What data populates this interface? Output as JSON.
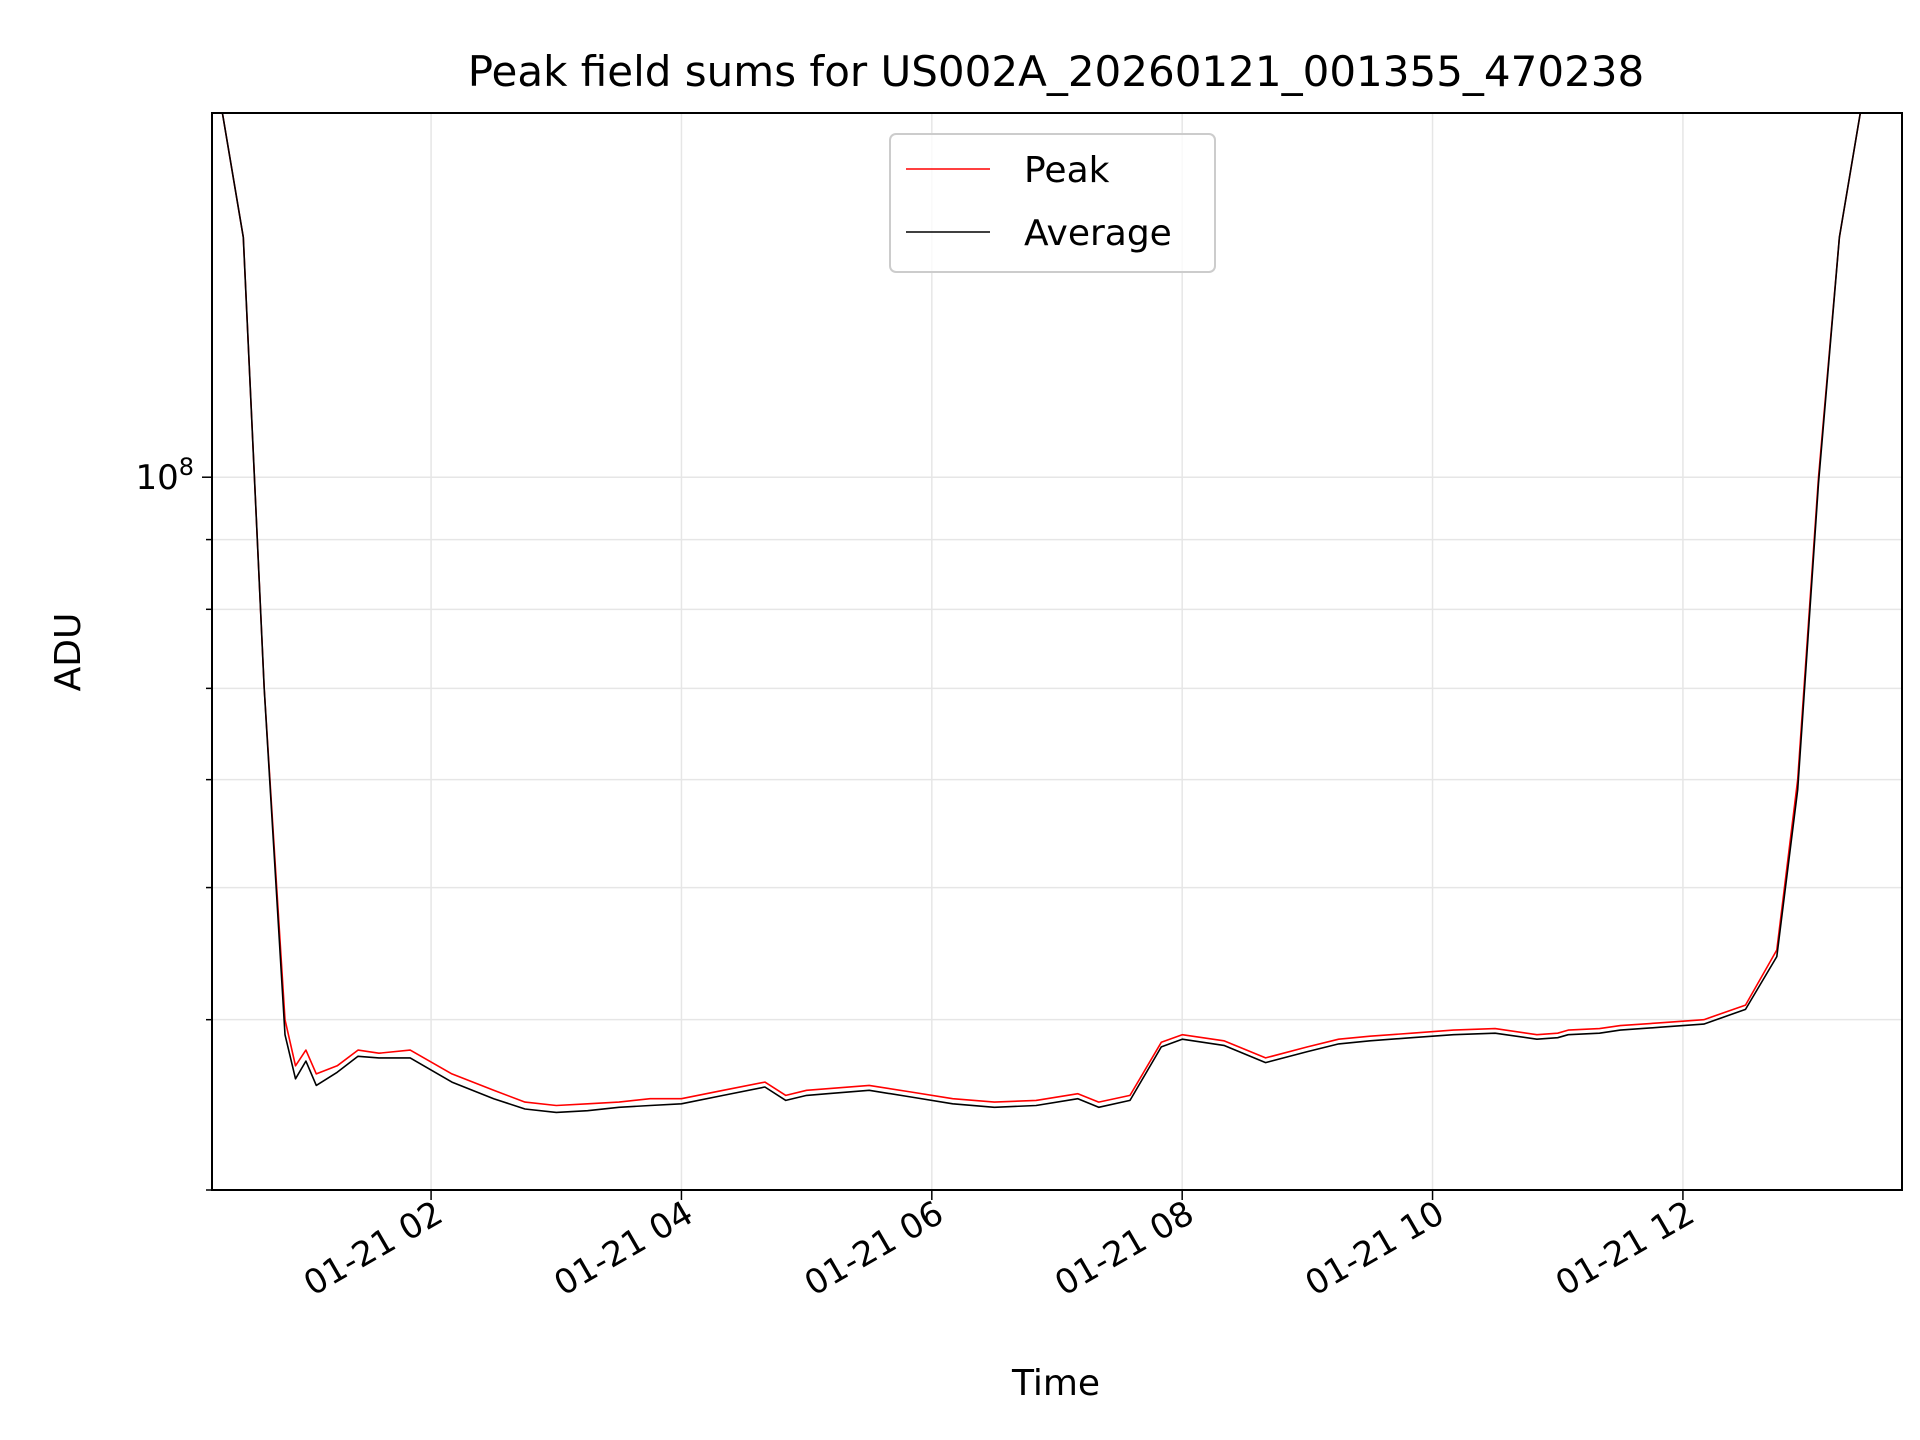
{
  "chart_data": {
    "type": "line",
    "title": "Peak field sums for US002A_20260121_001355_470238",
    "xlabel": "Time",
    "ylabel": "ADU",
    "y_scale": "log",
    "grid": true,
    "legend_position": "upper center",
    "x_range_hours": [
      "01-21 00:15",
      "01-21 13:45"
    ],
    "ylim": [
      30000000,
      185000000
    ],
    "x_ticks": [
      "01-21 02",
      "01-21 04",
      "01-21 06",
      "01-21 08",
      "01-21 10",
      "01-21 12"
    ],
    "y_ticks": [
      "10^8"
    ],
    "y_tick_base": "10",
    "y_tick_exp": "8",
    "series": [
      {
        "name": "Peak",
        "color": "#ff0000",
        "x": [
          "01-21 00:15",
          "01-21 00:20",
          "01-21 00:30",
          "01-21 00:40",
          "01-21 00:50",
          "01-21 00:55",
          "01-21 01:00",
          "01-21 01:05",
          "01-21 01:15",
          "01-21 01:25",
          "01-21 01:35",
          "01-21 01:50",
          "01-21 02:10",
          "01-21 02:30",
          "01-21 02:45",
          "01-21 03:00",
          "01-21 03:15",
          "01-21 03:30",
          "01-21 03:45",
          "01-21 04:00",
          "01-21 04:20",
          "01-21 04:40",
          "01-21 04:50",
          "01-21 05:00",
          "01-21 05:10",
          "01-21 05:30",
          "01-21 05:50",
          "01-21 06:10",
          "01-21 06:30",
          "01-21 06:50",
          "01-21 07:10",
          "01-21 07:20",
          "01-21 07:35",
          "01-21 07:50",
          "01-21 08:00",
          "01-21 08:20",
          "01-21 08:40",
          "01-21 09:00",
          "01-21 09:15",
          "01-21 09:30",
          "01-21 09:50",
          "01-21 10:10",
          "01-21 10:30",
          "01-21 10:50",
          "01-21 11:00",
          "01-21 11:05",
          "01-21 11:20",
          "01-21 11:30",
          "01-21 11:50",
          "01-21 12:10",
          "01-21 12:30",
          "01-21 12:45",
          "01-21 12:55",
          "01-21 13:05",
          "01-21 13:15",
          "01-21 13:25",
          "01-21 13:35",
          "01-21 13:45"
        ],
        "values": [
          185000000,
          185000000,
          150000000,
          70000000,
          40000000,
          37000000,
          38000000,
          36500000,
          37000000,
          38000000,
          37800000,
          38000000,
          36500000,
          35500000,
          34800000,
          34600000,
          34700000,
          34800000,
          35000000,
          35000000,
          35500000,
          36000000,
          35200000,
          35500000,
          35600000,
          35800000,
          35400000,
          35000000,
          34800000,
          34900000,
          35300000,
          34800000,
          35200000,
          38500000,
          39000000,
          38600000,
          37500000,
          38200000,
          38700000,
          38900000,
          39100000,
          39300000,
          39400000,
          39000000,
          39100000,
          39300000,
          39400000,
          39600000,
          39800000,
          40000000,
          41000000,
          45000000,
          60000000,
          100000000,
          150000000,
          185000000,
          185000000,
          185000000
        ]
      },
      {
        "name": "Average",
        "color": "#000000",
        "x": [
          "01-21 00:15",
          "01-21 00:20",
          "01-21 00:30",
          "01-21 00:40",
          "01-21 00:50",
          "01-21 00:55",
          "01-21 01:00",
          "01-21 01:05",
          "01-21 01:15",
          "01-21 01:25",
          "01-21 01:35",
          "01-21 01:50",
          "01-21 02:10",
          "01-21 02:30",
          "01-21 02:45",
          "01-21 03:00",
          "01-21 03:15",
          "01-21 03:30",
          "01-21 03:45",
          "01-21 04:00",
          "01-21 04:20",
          "01-21 04:40",
          "01-21 04:50",
          "01-21 05:00",
          "01-21 05:10",
          "01-21 05:30",
          "01-21 05:50",
          "01-21 06:10",
          "01-21 06:30",
          "01-21 06:50",
          "01-21 07:10",
          "01-21 07:20",
          "01-21 07:35",
          "01-21 07:50",
          "01-21 08:00",
          "01-21 08:20",
          "01-21 08:40",
          "01-21 09:00",
          "01-21 09:15",
          "01-21 09:30",
          "01-21 09:50",
          "01-21 10:10",
          "01-21 10:30",
          "01-21 10:50",
          "01-21 11:00",
          "01-21 11:05",
          "01-21 11:20",
          "01-21 11:30",
          "01-21 11:50",
          "01-21 12:10",
          "01-21 12:30",
          "01-21 12:45",
          "01-21 12:55",
          "01-21 13:05",
          "01-21 13:15",
          "01-21 13:25",
          "01-21 13:35",
          "01-21 13:45"
        ],
        "values": [
          185000000,
          185000000,
          150000000,
          70000000,
          39000000,
          36200000,
          37300000,
          35800000,
          36600000,
          37600000,
          37500000,
          37500000,
          36000000,
          35000000,
          34400000,
          34200000,
          34300000,
          34500000,
          34600000,
          34700000,
          35200000,
          35700000,
          34900000,
          35200000,
          35300000,
          35500000,
          35100000,
          34700000,
          34500000,
          34600000,
          35000000,
          34500000,
          34900000,
          38200000,
          38700000,
          38300000,
          37200000,
          37900000,
          38400000,
          38600000,
          38800000,
          39000000,
          39100000,
          38700000,
          38800000,
          39000000,
          39100000,
          39300000,
          39500000,
          39700000,
          40700000,
          44500000,
          59000000,
          99000000,
          150000000,
          185000000,
          185000000,
          185000000
        ]
      }
    ]
  }
}
